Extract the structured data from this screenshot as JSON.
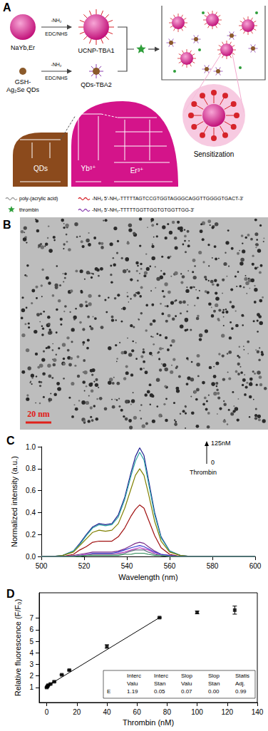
{
  "panel_A": {
    "label": "A",
    "texts": {
      "ucnp": "NaYb,Er",
      "ucnp_conj": "UCNP-TBA1",
      "qd_1": "GSH-",
      "qd_2": "Ag₂Se QDs",
      "qd_conj": "QDs-TBA2",
      "reagent_top": "-NH₂",
      "reagent_bottom": "EDC/NHS",
      "sensitization": "Sensitization",
      "level_qd": "QDs",
      "level_yb": "Yb³⁺",
      "level_er": "Er³⁺"
    },
    "legend": [
      {
        "marker": "line",
        "color": "#9a9a9a",
        "text": "poly-(acrylic acid)"
      },
      {
        "marker": "star",
        "color": "#2e9e3a",
        "text": "thrombin"
      },
      {
        "marker": "line",
        "color": "#d6232a",
        "text": "-NH₂ 5'-NH₂-TTTTTAGTCCGTGGTAGGGCAGGTTGGGGTGACT-3'"
      },
      {
        "marker": "line",
        "color": "#8a3fb0",
        "text": "-NH₂ 5'-NH₂-TTTTTGGTTGGTGTGGTTGG-3'"
      }
    ]
  },
  "panel_B": {
    "label": "B",
    "scale_bar": "20 nm"
  },
  "chart_data": [
    {
      "type": "line",
      "title": "C",
      "x_label": "Wavelength (nm)",
      "y_label": "Normalized intensity (a.u.)",
      "annotations": [
        "125nM",
        "0",
        "Thrombin"
      ],
      "x": [
        500,
        505,
        510,
        515,
        518,
        521,
        524,
        527,
        530,
        533,
        536,
        539,
        542,
        544,
        546,
        548,
        550,
        553,
        556,
        560,
        565,
        570,
        580,
        590,
        600
      ],
      "xlim": [
        500,
        600
      ],
      "xticks": [
        500,
        520,
        540,
        560,
        580,
        600
      ],
      "ylim": [
        0,
        1
      ],
      "yticks": [
        {
          "value": 0,
          "label": "0.0"
        },
        {
          "value": 0.2,
          "label": "0.2"
        },
        {
          "value": 0.4,
          "label": "0.4"
        },
        {
          "value": 0.6,
          "label": "0.6"
        },
        {
          "value": 0.8,
          "label": "0.8"
        },
        {
          "value": 1,
          "label": "1.0"
        }
      ],
      "grid": false,
      "series": [
        {
          "color": "#1f1f8f",
          "values": [
            0,
            0,
            0.01,
            0.05,
            0.12,
            0.2,
            0.27,
            0.3,
            0.29,
            0.3,
            0.38,
            0.54,
            0.77,
            0.91,
            0.99,
            0.92,
            0.71,
            0.4,
            0.18,
            0.05,
            0.01,
            0,
            0,
            0,
            0
          ]
        },
        {
          "color": "#2aa3a3",
          "values": [
            0,
            0,
            0.01,
            0.05,
            0.11,
            0.19,
            0.26,
            0.29,
            0.28,
            0.29,
            0.36,
            0.52,
            0.74,
            0.87,
            0.95,
            0.88,
            0.68,
            0.38,
            0.17,
            0.05,
            0.01,
            0,
            0,
            0,
            0
          ]
        },
        {
          "color": "#808000",
          "values": [
            0,
            0,
            0.01,
            0.04,
            0.1,
            0.16,
            0.22,
            0.24,
            0.23,
            0.24,
            0.3,
            0.44,
            0.62,
            0.74,
            0.8,
            0.74,
            0.58,
            0.32,
            0.14,
            0.04,
            0.01,
            0,
            0,
            0,
            0
          ]
        },
        {
          "color": "#a01010",
          "values": [
            0,
            0,
            0,
            0.02,
            0.06,
            0.09,
            0.13,
            0.14,
            0.14,
            0.14,
            0.18,
            0.26,
            0.37,
            0.43,
            0.47,
            0.44,
            0.34,
            0.19,
            0.08,
            0.02,
            0,
            0,
            0,
            0,
            0
          ]
        },
        {
          "color": "#7b2d8b",
          "values": [
            0,
            0,
            0,
            0.01,
            0.02,
            0.03,
            0.04,
            0.04,
            0.04,
            0.04,
            0.05,
            0.07,
            0.1,
            0.12,
            0.13,
            0.12,
            0.09,
            0.05,
            0.02,
            0.01,
            0,
            0,
            0,
            0,
            0
          ]
        },
        {
          "color": "#3a3ad0",
          "values": [
            0,
            0,
            0,
            0,
            0.01,
            0.02,
            0.03,
            0.03,
            0.03,
            0.03,
            0.04,
            0.06,
            0.08,
            0.09,
            0.1,
            0.09,
            0.07,
            0.04,
            0.02,
            0.01,
            0,
            0,
            0,
            0,
            0
          ]
        },
        {
          "color": "#c040c0",
          "values": [
            0,
            0,
            0,
            0,
            0.01,
            0.02,
            0.02,
            0.02,
            0.02,
            0.02,
            0.03,
            0.04,
            0.06,
            0.07,
            0.08,
            0.07,
            0.06,
            0.03,
            0.01,
            0,
            0,
            0,
            0,
            0,
            0
          ]
        },
        {
          "color": "#607080",
          "values": [
            0,
            0,
            0,
            0,
            0.01,
            0.01,
            0.02,
            0.02,
            0.02,
            0.02,
            0.02,
            0.03,
            0.05,
            0.06,
            0.06,
            0.06,
            0.04,
            0.02,
            0.01,
            0,
            0,
            0,
            0,
            0,
            0
          ]
        },
        {
          "color": "#2e8b57",
          "values": [
            0,
            0,
            0,
            0,
            0,
            0.01,
            0.01,
            0.01,
            0.01,
            0.01,
            0.01,
            0.02,
            0.02,
            0.03,
            0.03,
            0.03,
            0.02,
            0.01,
            0.01,
            0,
            0,
            0,
            0,
            0,
            0
          ]
        }
      ]
    },
    {
      "type": "scatter",
      "title": "D",
      "x_label": "Thrombin (nM)",
      "y_label": "Relative fluorescence (F/F₀)",
      "xlim": [
        -5,
        140
      ],
      "xticks": [
        0,
        20,
        40,
        60,
        80,
        100,
        120,
        140
      ],
      "ylim": [
        -0.3,
        9.2
      ],
      "yticks": [
        1,
        2,
        3,
        4,
        5,
        6,
        7
      ],
      "grid": false,
      "series": [
        {
          "type": "scatter",
          "color": "#000000",
          "marker": "square",
          "x": [
            0,
            0.5,
            1,
            2.5,
            5,
            10,
            15,
            40,
            75,
            100,
            125
          ],
          "values": [
            1.0,
            1.1,
            1.2,
            1.3,
            1.5,
            2.1,
            2.5,
            4.55,
            7.05,
            7.5,
            7.7
          ],
          "errors": [
            0.05,
            0.05,
            0.05,
            0.05,
            0.05,
            0.05,
            0.05,
            0.15,
            0.05,
            0.12,
            0.35
          ]
        },
        {
          "type": "line",
          "color": "#000000",
          "line_style": "solid",
          "x": [
            0,
            75
          ],
          "values": [
            1.1,
            7.05
          ]
        }
      ],
      "inset_table": {
        "columns": [
          [
            "Interc",
            "Valu"
          ],
          [
            "Interc",
            "Stan"
          ],
          [
            "Slop",
            "Valu"
          ],
          [
            "Slop",
            "Stan"
          ],
          [
            "Statis",
            "Adj."
          ]
        ],
        "rows": [
          {
            "label": "E",
            "values": [
              "1.19",
              "0.05",
              "0.07",
              "0.00",
              "0.99"
            ]
          }
        ]
      }
    }
  ]
}
